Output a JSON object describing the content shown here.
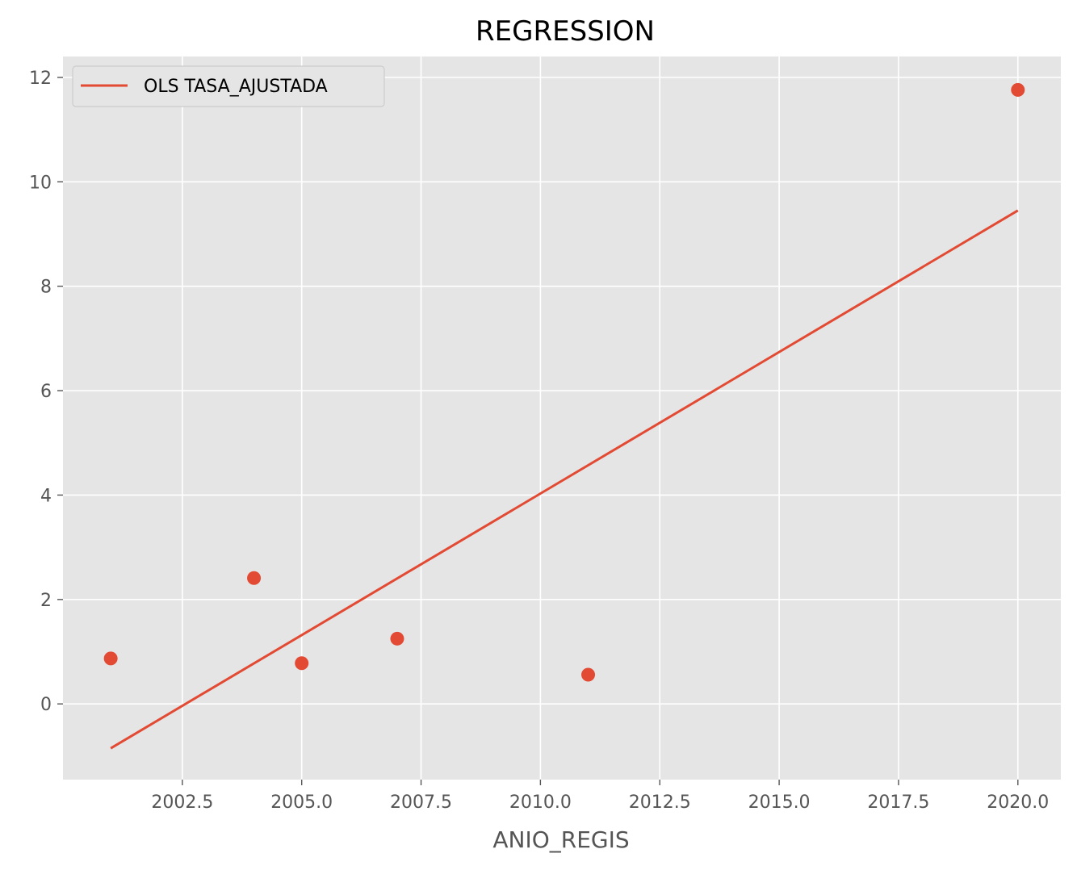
{
  "chart_data": {
    "type": "scatter",
    "title": "REGRESSION",
    "xlabel": "ANIO_REGIS",
    "ylabel": "",
    "xlim": [
      2000.0,
      2020.9
    ],
    "ylim": [
      -1.45,
      12.4
    ],
    "x_ticks": [
      2002.5,
      2005.0,
      2007.5,
      2010.0,
      2012.5,
      2015.0,
      2017.5,
      2020.0
    ],
    "x_tick_labels": [
      "2002.5",
      "2005.0",
      "2007.5",
      "2010.0",
      "2012.5",
      "2015.0",
      "2017.5",
      "2020.0"
    ],
    "y_ticks": [
      0,
      2,
      4,
      6,
      8,
      10,
      12
    ],
    "y_tick_labels": [
      "0",
      "2",
      "4",
      "6",
      "8",
      "10",
      "12"
    ],
    "grid": true,
    "legend_position": "top-left",
    "points": {
      "x": [
        2001,
        2004,
        2005,
        2007,
        2011,
        2020
      ],
      "y": [
        0.87,
        2.41,
        0.78,
        1.25,
        0.56,
        11.76
      ]
    },
    "series": [
      {
        "name": "OLS TASA_AJUSTADA",
        "type": "line",
        "x": [
          2001,
          2020
        ],
        "y": [
          -0.85,
          9.45
        ]
      }
    ],
    "colors": {
      "accent": "#e24a33",
      "plot_background": "#e5e5e5",
      "grid": "#ffffff",
      "text": "#555555"
    }
  }
}
